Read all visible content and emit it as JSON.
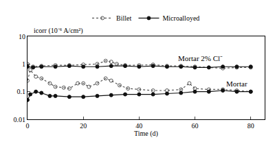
{
  "chart_data": {
    "type": "line",
    "x_label": "Time (d)",
    "y_label": "icorr (10⁻⁶ A/cm²)",
    "log": "y",
    "legend": "top",
    "grid": false,
    "xlim": [
      0,
      85
    ],
    "xticks": [
      0,
      20,
      40,
      60,
      80
    ],
    "ylim": [
      0.01,
      10
    ],
    "yticks": [
      0.01,
      0.1,
      1,
      10
    ],
    "annotations": [
      {
        "text": "Mortar 2% Cl⁻",
        "x": 62,
        "y": 1.6
      },
      {
        "text": "Mortar",
        "x": 75,
        "y": 0.19
      }
    ],
    "series": [
      {
        "name": "Billet",
        "color": "#555555",
        "marker": "open-circle",
        "line_style": "dot",
        "x": [
          0,
          2,
          5,
          10,
          15,
          20,
          25,
          28,
          30,
          32,
          35,
          40,
          45,
          50,
          55,
          60,
          70,
          75,
          80
        ],
        "values": [
          1.0,
          0.8,
          0.85,
          0.9,
          0.9,
          0.95,
          1.0,
          1.3,
          1.2,
          1.0,
          0.9,
          0.9,
          0.95,
          0.85,
          0.85,
          0.8,
          0.7,
          0.75,
          0.75
        ]
      },
      {
        "name": "Microalloyed",
        "color": "#111111",
        "marker": "filled-circle",
        "line_style": "solid",
        "x": [
          0,
          2,
          5,
          10,
          15,
          20,
          25,
          30,
          35,
          40,
          45,
          50,
          55,
          60,
          65,
          70,
          75,
          80
        ],
        "values": [
          0.8,
          0.75,
          0.8,
          0.8,
          0.85,
          0.8,
          0.8,
          0.85,
          0.85,
          0.8,
          0.85,
          0.8,
          0.8,
          0.75,
          0.75,
          0.8,
          0.8,
          0.8
        ]
      },
      {
        "name": "Billet",
        "color": "#555555",
        "marker": "open-circle",
        "line_style": "dot",
        "x": [
          0,
          1,
          3,
          5,
          8,
          10,
          13,
          15,
          18,
          20,
          22,
          25,
          28,
          30,
          33,
          36,
          40,
          45,
          50,
          55,
          58,
          60,
          65,
          70,
          75,
          80
        ],
        "values": [
          0.25,
          0.6,
          0.35,
          0.3,
          0.2,
          0.15,
          0.14,
          0.13,
          0.2,
          0.2,
          0.15,
          0.2,
          0.3,
          0.25,
          0.17,
          0.13,
          0.12,
          0.11,
          0.11,
          0.12,
          0.2,
          0.13,
          0.12,
          0.12,
          0.11,
          0.1
        ]
      },
      {
        "name": "Microalloyed",
        "color": "#111111",
        "marker": "filled-circle",
        "line_style": "solid",
        "x": [
          0,
          1,
          3,
          5,
          8,
          10,
          15,
          20,
          25,
          30,
          35,
          40,
          45,
          50,
          55,
          60,
          65,
          70,
          75,
          80
        ],
        "values": [
          0.05,
          0.08,
          0.1,
          0.09,
          0.07,
          0.07,
          0.065,
          0.065,
          0.07,
          0.075,
          0.08,
          0.08,
          0.08,
          0.085,
          0.09,
          0.1,
          0.1,
          0.11,
          0.1,
          0.1
        ]
      }
    ]
  }
}
